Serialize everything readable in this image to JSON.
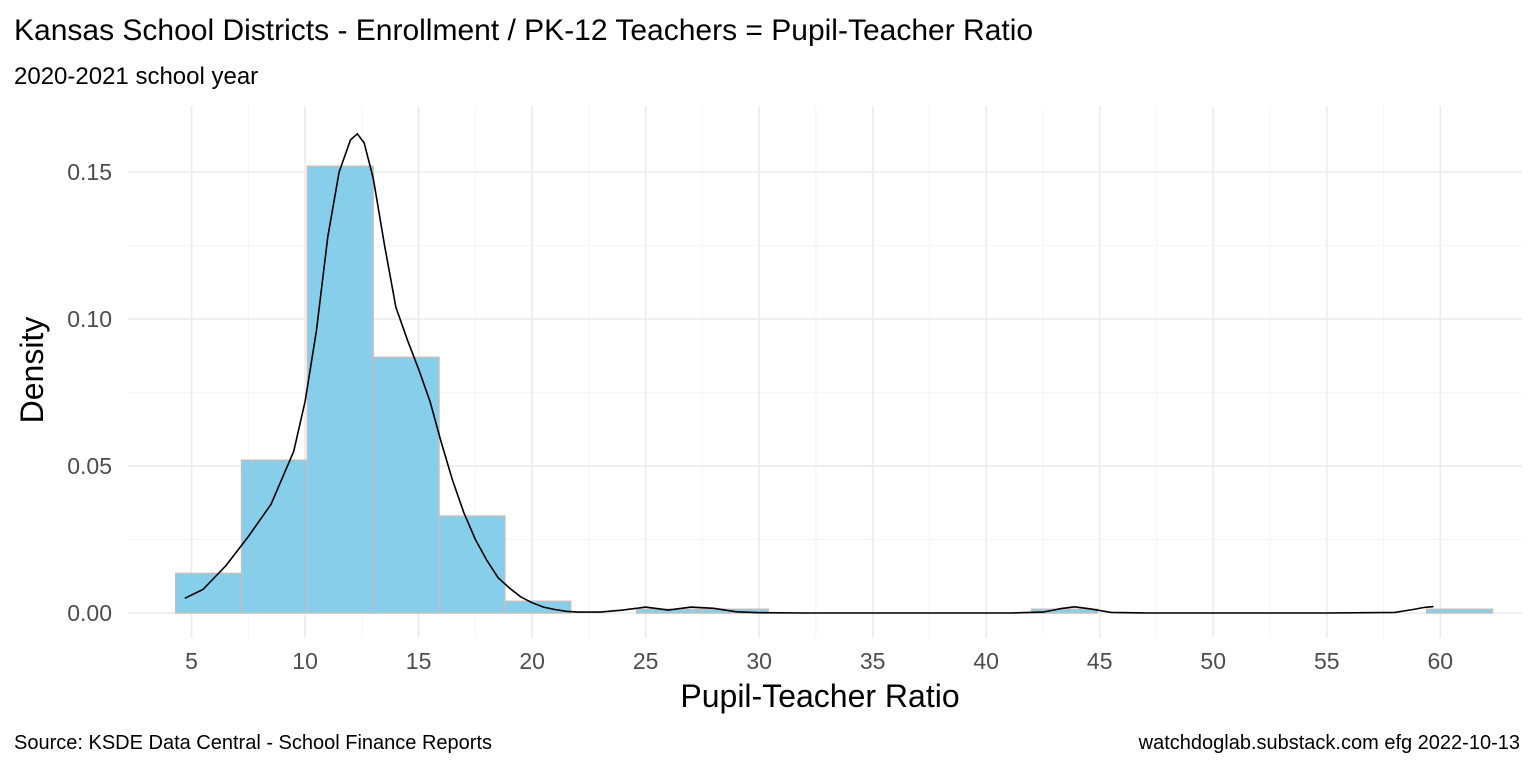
{
  "chart_data": {
    "type": "bar",
    "title": "Kansas School Districts - Enrollment / PK-12 Teachers = Pupil-Teacher Ratio",
    "subtitle": "2020-2021 school year",
    "xlabel": "Pupil-Teacher Ratio",
    "ylabel": "Density",
    "caption_left": "Source:  KSDE Data Central - School Finance Reports",
    "caption_right": "watchdoglab.substack.com  efg 2022-10-13",
    "xlim": [
      2.2,
      63.6
    ],
    "ylim": [
      -0.0085,
      0.1725
    ],
    "x_ticks": [
      5,
      10,
      15,
      20,
      25,
      30,
      35,
      40,
      45,
      50,
      55,
      60
    ],
    "y_ticks": [
      0.0,
      0.05,
      0.1,
      0.15
    ],
    "y_tick_labels": [
      "0.00",
      "0.05",
      "0.10",
      "0.15"
    ],
    "grid": true,
    "bar_fill": "#87CEEB",
    "bar_stroke": "#C0C0C0",
    "density_color": "#000000",
    "bins": [
      {
        "x0": 4.3,
        "x1": 7.2,
        "density": 0.0135
      },
      {
        "x0": 7.2,
        "x1": 10.1,
        "density": 0.052
      },
      {
        "x0": 10.1,
        "x1": 13.0,
        "density": 0.152
      },
      {
        "x0": 13.0,
        "x1": 15.9,
        "density": 0.087
      },
      {
        "x0": 15.9,
        "x1": 18.8,
        "density": 0.033
      },
      {
        "x0": 18.8,
        "x1": 21.7,
        "density": 0.004
      },
      {
        "x0": 21.7,
        "x1": 24.6,
        "density": 0.0
      },
      {
        "x0": 24.6,
        "x1": 27.5,
        "density": 0.0013
      },
      {
        "x0": 27.5,
        "x1": 30.4,
        "density": 0.0013
      },
      {
        "x0": 30.4,
        "x1": 33.3,
        "density": 0.0
      },
      {
        "x0": 33.3,
        "x1": 36.2,
        "density": 0.0
      },
      {
        "x0": 36.2,
        "x1": 39.1,
        "density": 0.0
      },
      {
        "x0": 39.1,
        "x1": 42.0,
        "density": 0.0
      },
      {
        "x0": 42.0,
        "x1": 44.9,
        "density": 0.0013
      },
      {
        "x0": 44.9,
        "x1": 47.8,
        "density": 0.0
      },
      {
        "x0": 47.8,
        "x1": 50.7,
        "density": 0.0
      },
      {
        "x0": 50.7,
        "x1": 53.6,
        "density": 0.0
      },
      {
        "x0": 53.6,
        "x1": 56.5,
        "density": 0.0
      },
      {
        "x0": 56.5,
        "x1": 59.4,
        "density": 0.0
      },
      {
        "x0": 59.4,
        "x1": 62.3,
        "density": 0.0013
      }
    ],
    "density_curve": {
      "x": [
        4.7,
        5.5,
        6.5,
        7.5,
        8.5,
        9.5,
        10.0,
        10.5,
        11.0,
        11.5,
        12.0,
        12.3,
        12.6,
        13.0,
        13.5,
        14.0,
        14.5,
        15.0,
        15.5,
        16.0,
        16.5,
        17.0,
        17.5,
        18.0,
        18.5,
        19.0,
        19.5,
        20.0,
        20.5,
        21.0,
        21.5,
        22.0,
        23.0,
        24.0,
        25.0,
        26.0,
        27.0,
        28.0,
        29.0,
        30.0,
        32.0,
        35.0,
        38.0,
        41.0,
        42.5,
        43.3,
        43.9,
        44.6,
        45.5,
        47.0,
        50.0,
        55.0,
        58.0,
        58.8,
        59.3,
        59.7
      ],
      "y": [
        0.005,
        0.008,
        0.016,
        0.026,
        0.037,
        0.055,
        0.072,
        0.096,
        0.128,
        0.15,
        0.161,
        0.163,
        0.16,
        0.148,
        0.125,
        0.104,
        0.093,
        0.083,
        0.072,
        0.058,
        0.045,
        0.034,
        0.025,
        0.018,
        0.012,
        0.0085,
        0.0055,
        0.0035,
        0.002,
        0.0012,
        0.0006,
        0.0003,
        0.0003,
        0.001,
        0.002,
        0.001,
        0.002,
        0.0016,
        0.0004,
        0.0001,
        0.0,
        0.0,
        0.0,
        0.0,
        0.0003,
        0.0015,
        0.0021,
        0.0014,
        0.0002,
        0.0,
        0.0,
        0.0,
        0.0002,
        0.0012,
        0.0019,
        0.0022
      ]
    }
  }
}
